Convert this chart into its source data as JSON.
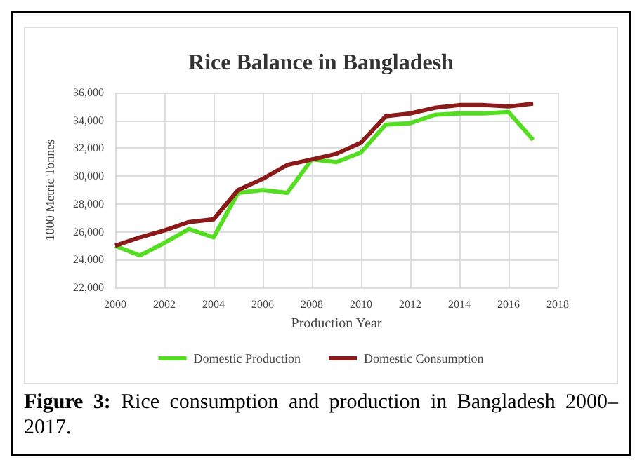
{
  "chart_data": {
    "type": "line",
    "title": "Rice Balance in Bangladesh",
    "xlabel": "Production Year",
    "ylabel": "1000 Metric Tonnes",
    "x": [
      2000,
      2001,
      2002,
      2003,
      2004,
      2005,
      2006,
      2007,
      2008,
      2009,
      2010,
      2011,
      2012,
      2013,
      2014,
      2015,
      2016,
      2017
    ],
    "series": [
      {
        "name": "Domestic Production",
        "color": "#55dd22",
        "values": [
          25000,
          24300,
          25200,
          26200,
          25600,
          28800,
          29000,
          28800,
          31200,
          31000,
          31700,
          33700,
          33800,
          34400,
          34500,
          34500,
          34600,
          32600
        ]
      },
      {
        "name": "Domestic Consumption",
        "color": "#8b1a1a",
        "values": [
          25000,
          25600,
          26100,
          26700,
          26900,
          29000,
          29800,
          30800,
          31200,
          31600,
          32400,
          34300,
          34500,
          34900,
          35100,
          35100,
          35000,
          35200
        ]
      }
    ],
    "xlim": [
      2000,
      2018
    ],
    "xticks": [
      2000,
      2002,
      2004,
      2006,
      2008,
      2010,
      2012,
      2014,
      2016,
      2018
    ],
    "ylim": [
      22000,
      36000
    ],
    "yticks": [
      {
        "value": 22000,
        "label": "22,000"
      },
      {
        "value": 24000,
        "label": "24,000"
      },
      {
        "value": 26000,
        "label": "26,000"
      },
      {
        "value": 28000,
        "label": "28,000"
      },
      {
        "value": 30000,
        "label": "30,000"
      },
      {
        "value": 32000,
        "label": "32,000"
      },
      {
        "value": 34000,
        "label": "34,000"
      },
      {
        "value": 36000,
        "label": "36,000"
      }
    ],
    "grid": true,
    "legend": "bottom",
    "marker": "none",
    "line_style": "solid",
    "annotations": [
      "Figure 3: Rice consumption and production in Bangladesh 2000–2017."
    ]
  }
}
